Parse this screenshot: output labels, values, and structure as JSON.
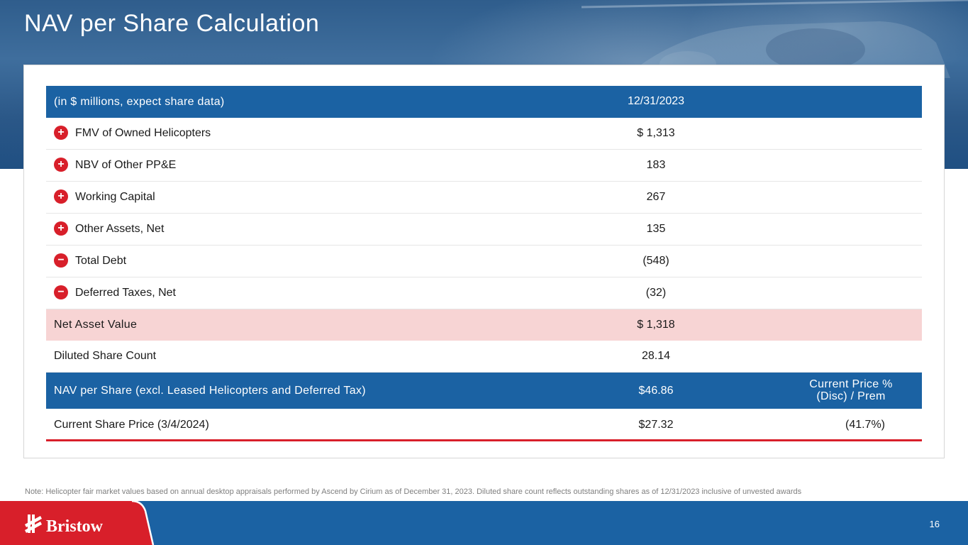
{
  "title": "NAV per Share Calculation",
  "table": {
    "header": {
      "label": "(in $ millions, expect share data)",
      "date": "12/31/2023"
    },
    "items": [
      {
        "sign": "+",
        "label": "FMV of Owned Helicopters",
        "value": "$ 1,313"
      },
      {
        "sign": "+",
        "label": "NBV of Other PP&E",
        "value": "183"
      },
      {
        "sign": "+",
        "label": "Working Capital",
        "value": "267"
      },
      {
        "sign": "+",
        "label": "Other Assets, Net",
        "value": "135"
      },
      {
        "sign": "−",
        "label": "Total Debt",
        "value": "(548)"
      },
      {
        "sign": "−",
        "label": "Deferred Taxes, Net",
        "value": "(32)"
      }
    ],
    "net_asset_value": {
      "label": "Net Asset Value",
      "value": "$ 1,318"
    },
    "diluted_share_count": {
      "label": "Diluted Share Count",
      "value": "28.14"
    },
    "nav_per_share": {
      "label": "NAV per Share (excl. Leased Helicopters and Deferred Tax)",
      "value": "$46.86",
      "col_header_line1": "Current Price %",
      "col_header_line2": "(Disc) / Prem"
    },
    "current_price": {
      "label": "Current Share Price (3/4/2024)",
      "value": "$27.32",
      "disc_prem": "(41.7%)"
    }
  },
  "footnote": "Note: Helicopter fair market values based on annual desktop appraisals performed by Ascend by Cirium as of December 31, 2023. Diluted share count reflects outstanding shares as of 12/31/2023 inclusive of unvested awards",
  "footer": {
    "logo_text": "Bristow",
    "page_number": "16"
  },
  "colors": {
    "brand_blue": "#1b62a3",
    "accent_red": "#d81f2a",
    "highlight_pink": "#f7d4d4"
  },
  "icons": {
    "plus": "plus-circle-icon",
    "minus": "minus-circle-icon",
    "logo": "bristow-logo"
  }
}
